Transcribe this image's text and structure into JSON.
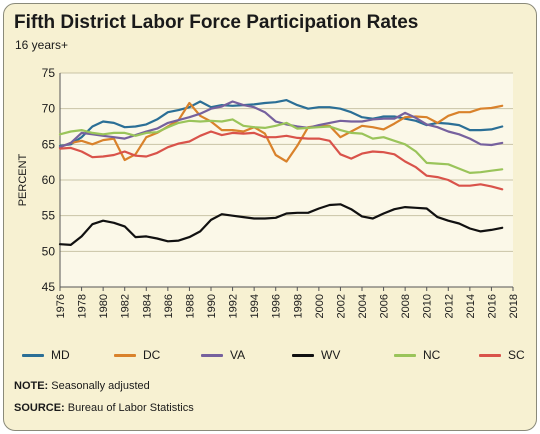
{
  "title": "Fifth District Labor Force Participation Rates",
  "subtitle": "16 years+",
  "note_label": "NOTE:",
  "note_text": "Seasonally adjusted",
  "source_label": "SOURCE:",
  "source_text": "Bureau of Labor Statistics",
  "chart_data": {
    "type": "line",
    "title": "Fifth District Labor Force Participation Rates",
    "subtitle": "16 years+",
    "xlabel": "",
    "ylabel": "PERCENT",
    "xlim": [
      1976,
      2018
    ],
    "ylim": [
      45,
      75
    ],
    "xticks": [
      1976,
      1978,
      1980,
      1982,
      1984,
      1986,
      1988,
      1990,
      1992,
      1994,
      1996,
      1998,
      2000,
      2002,
      2004,
      2006,
      2008,
      2010,
      2012,
      2014,
      2016,
      2018
    ],
    "yticks": [
      45,
      50,
      55,
      60,
      65,
      70,
      75
    ],
    "grid": "horizontal",
    "legend_position": "bottom",
    "x": [
      1976,
      1977,
      1978,
      1979,
      1980,
      1981,
      1982,
      1983,
      1984,
      1985,
      1986,
      1987,
      1988,
      1989,
      1990,
      1991,
      1992,
      1993,
      1994,
      1995,
      1996,
      1997,
      1998,
      1999,
      2000,
      2001,
      2002,
      2003,
      2004,
      2005,
      2006,
      2007,
      2008,
      2009,
      2010,
      2011,
      2012,
      2013,
      2014,
      2015,
      2016,
      2017
    ],
    "series": [
      {
        "name": "MD",
        "color": "#2b6f96",
        "values": [
          64.8,
          65.0,
          66.0,
          67.5,
          68.2,
          68.0,
          67.4,
          67.5,
          67.8,
          68.5,
          69.5,
          69.8,
          70.2,
          71.0,
          70.2,
          70.5,
          70.4,
          70.5,
          70.6,
          70.8,
          70.9,
          71.2,
          70.5,
          70.0,
          70.2,
          70.2,
          70.0,
          69.5,
          68.8,
          68.6,
          68.9,
          68.9,
          68.6,
          68.3,
          67.7,
          68.0,
          67.9,
          67.7,
          67.0,
          67.0,
          67.1,
          67.5
        ]
      },
      {
        "name": "DC",
        "color": "#d9822b",
        "values": [
          64.6,
          65.2,
          65.5,
          65.0,
          65.6,
          65.8,
          62.8,
          63.6,
          66.0,
          66.6,
          67.5,
          68.4,
          70.8,
          69.0,
          68.2,
          67.0,
          67.0,
          66.8,
          67.4,
          66.5,
          63.5,
          62.6,
          64.8,
          67.4,
          67.6,
          67.6,
          66.0,
          66.8,
          67.6,
          67.4,
          67.1,
          67.9,
          68.8,
          68.9,
          68.8,
          68.0,
          69.0,
          69.5,
          69.5,
          70.0,
          70.1,
          70.4
        ]
      },
      {
        "name": "VA",
        "color": "#76619e",
        "values": [
          64.6,
          65.2,
          66.6,
          66.4,
          66.2,
          66.0,
          65.8,
          66.3,
          66.8,
          67.2,
          68.0,
          68.4,
          68.8,
          69.3,
          70.0,
          70.3,
          71.0,
          70.5,
          70.2,
          69.5,
          68.2,
          67.8,
          67.5,
          67.3,
          67.7,
          68.0,
          68.3,
          68.2,
          68.2,
          68.5,
          68.6,
          68.6,
          69.4,
          68.7,
          67.8,
          67.4,
          66.8,
          66.4,
          65.8,
          65.0,
          64.9,
          65.2
        ]
      },
      {
        "name": "WV",
        "color": "#111111",
        "values": [
          51.0,
          50.9,
          52.1,
          53.8,
          54.3,
          54.0,
          53.5,
          52.0,
          52.1,
          51.8,
          51.4,
          51.5,
          52.0,
          52.8,
          54.4,
          55.2,
          55.0,
          54.8,
          54.6,
          54.6,
          54.7,
          55.3,
          55.4,
          55.4,
          56.0,
          56.5,
          56.6,
          55.9,
          54.9,
          54.6,
          55.3,
          55.9,
          56.2,
          56.1,
          56.0,
          54.8,
          54.3,
          53.9,
          53.2,
          52.8,
          53.0,
          53.3
        ]
      },
      {
        "name": "NC",
        "color": "#9ac45a",
        "values": [
          66.4,
          66.8,
          67.0,
          66.6,
          66.4,
          66.6,
          66.6,
          66.2,
          66.6,
          66.7,
          67.4,
          68.0,
          68.3,
          68.2,
          68.3,
          68.2,
          68.5,
          67.6,
          67.4,
          67.3,
          67.6,
          68.0,
          67.2,
          67.3,
          67.4,
          67.5,
          67.0,
          66.6,
          66.5,
          65.8,
          66.0,
          65.5,
          65.0,
          64.0,
          62.4,
          62.3,
          62.2,
          61.6,
          61.0,
          61.1,
          61.3,
          61.5
        ]
      },
      {
        "name": "SC",
        "color": "#d9534a",
        "values": [
          64.4,
          64.5,
          64.0,
          63.2,
          63.3,
          63.5,
          64.0,
          63.4,
          63.3,
          63.8,
          64.6,
          65.1,
          65.4,
          66.2,
          66.8,
          66.3,
          66.6,
          66.5,
          66.6,
          66.0,
          66.0,
          66.2,
          65.9,
          65.8,
          65.8,
          65.5,
          63.6,
          63.0,
          63.7,
          64.0,
          63.9,
          63.6,
          62.6,
          61.8,
          60.6,
          60.4,
          60.0,
          59.2,
          59.2,
          59.4,
          59.1,
          58.7
        ]
      }
    ]
  }
}
